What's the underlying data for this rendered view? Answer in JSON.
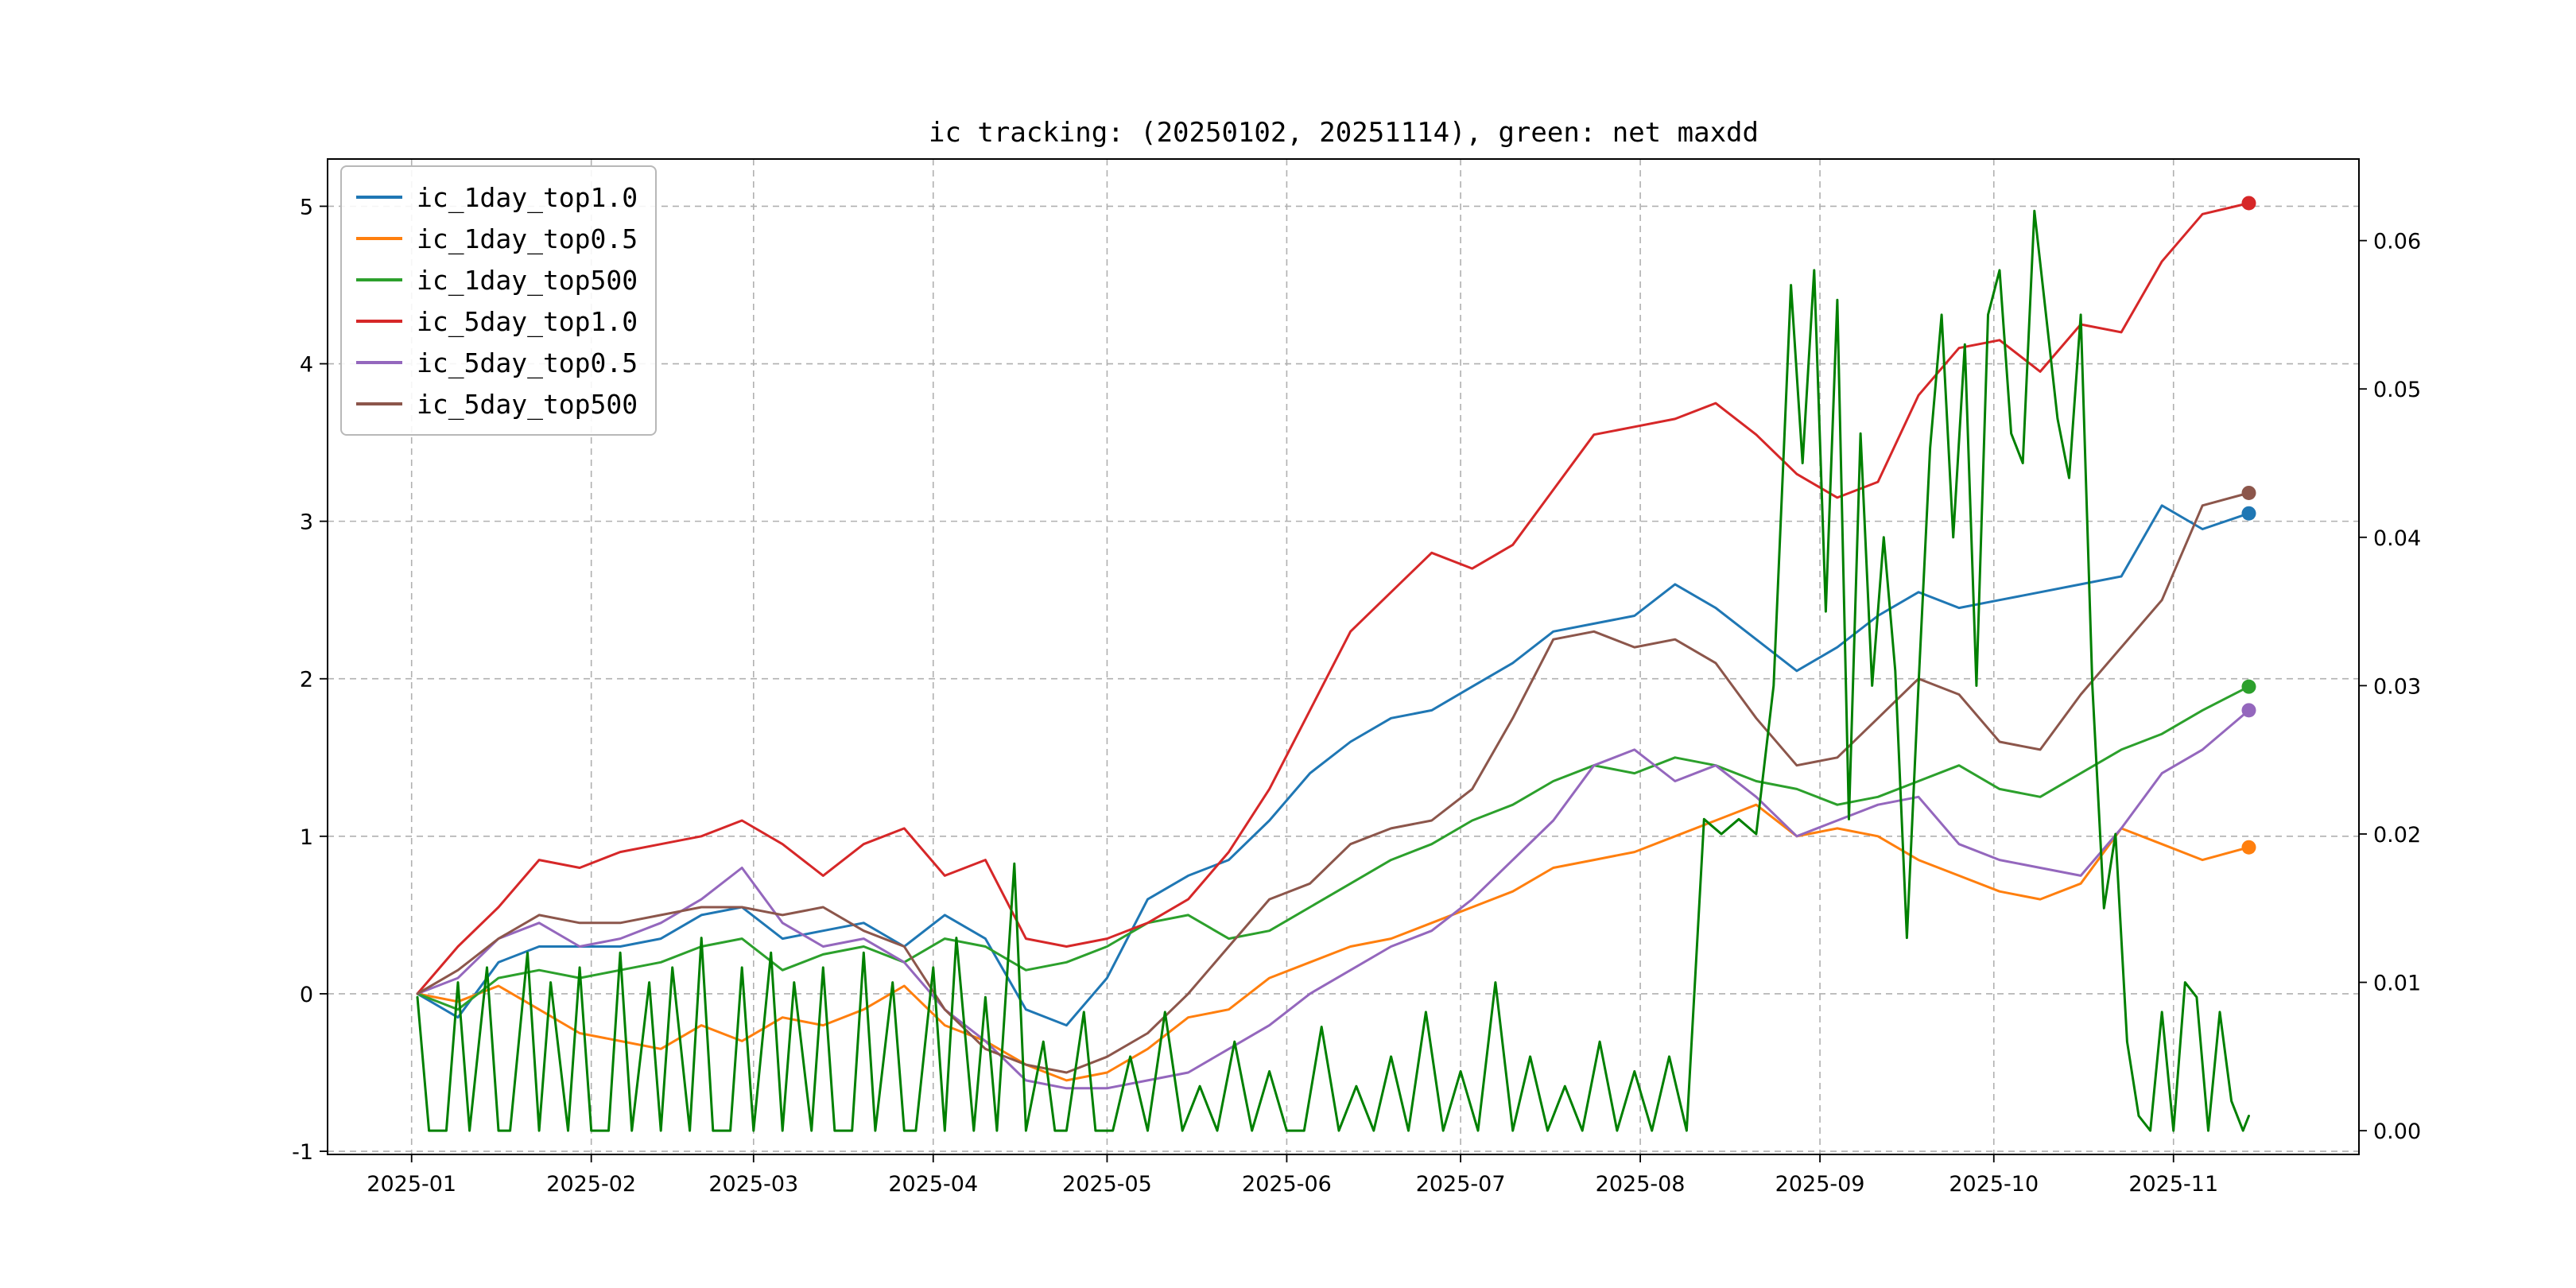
{
  "chart_data": {
    "type": "line",
    "title": "ic tracking: (20250102, 20251114), green: net maxdd",
    "date_range": [
      "20250102",
      "20251114"
    ],
    "x_ticks": [
      {
        "day": -1,
        "label": "2025-01"
      },
      {
        "day": 30,
        "label": "2025-02"
      },
      {
        "day": 58,
        "label": "2025-03"
      },
      {
        "day": 89,
        "label": "2025-04"
      },
      {
        "day": 119,
        "label": "2025-05"
      },
      {
        "day": 150,
        "label": "2025-06"
      },
      {
        "day": 180,
        "label": "2025-07"
      },
      {
        "day": 211,
        "label": "2025-08"
      },
      {
        "day": 242,
        "label": "2025-09"
      },
      {
        "day": 272,
        "label": "2025-10"
      },
      {
        "day": 303,
        "label": "2025-11"
      }
    ],
    "y_left": {
      "ticks": [
        -1,
        0,
        1,
        2,
        3,
        4,
        5
      ],
      "lim": [
        -1.02,
        5.3
      ]
    },
    "y_right": {
      "ticks": [
        {
          "v": 0.0,
          "label": "0.00"
        },
        {
          "v": 0.01,
          "label": "0.01"
        },
        {
          "v": 0.02,
          "label": "0.02"
        },
        {
          "v": 0.03,
          "label": "0.03"
        },
        {
          "v": 0.04,
          "label": "0.04"
        },
        {
          "v": 0.05,
          "label": "0.05"
        },
        {
          "v": 0.06,
          "label": "0.06"
        }
      ],
      "lim": [
        -0.0016,
        0.0655
      ]
    },
    "grid": {
      "on": true,
      "style": "dashed",
      "color": "#b0b0b0"
    },
    "legend_position": "upper-left",
    "week_days": [
      0,
      7,
      14,
      21,
      28,
      35,
      42,
      49,
      56,
      63,
      70,
      77,
      84,
      91,
      98,
      105,
      112,
      119,
      126,
      133,
      140,
      147,
      154,
      161,
      168,
      175,
      182,
      189,
      196,
      203,
      210,
      217,
      224,
      231,
      238,
      245,
      252,
      259,
      266,
      273,
      280,
      287,
      294,
      301,
      308,
      316
    ],
    "series": [
      {
        "name": "ic_1day_top1.0",
        "color": "#1f77b4",
        "axis": "left",
        "in_legend": true,
        "end_dot": true,
        "values": [
          0.0,
          -0.15,
          0.2,
          0.3,
          0.3,
          0.3,
          0.35,
          0.5,
          0.55,
          0.35,
          0.4,
          0.45,
          0.3,
          0.5,
          0.35,
          -0.1,
          -0.2,
          0.1,
          0.6,
          0.75,
          0.85,
          1.1,
          1.4,
          1.6,
          1.75,
          1.8,
          1.95,
          2.1,
          2.3,
          2.35,
          2.4,
          2.6,
          2.45,
          2.25,
          2.05,
          2.2,
          2.4,
          2.55,
          2.45,
          2.5,
          2.55,
          2.6,
          2.65,
          3.1,
          2.95,
          3.05
        ]
      },
      {
        "name": "ic_1day_top0.5",
        "color": "#ff7f0e",
        "axis": "left",
        "in_legend": true,
        "end_dot": true,
        "values": [
          0.0,
          -0.05,
          0.05,
          -0.1,
          -0.25,
          -0.3,
          -0.35,
          -0.2,
          -0.3,
          -0.15,
          -0.2,
          -0.1,
          0.05,
          -0.2,
          -0.3,
          -0.45,
          -0.55,
          -0.5,
          -0.35,
          -0.15,
          -0.1,
          0.1,
          0.2,
          0.3,
          0.35,
          0.45,
          0.55,
          0.65,
          0.8,
          0.85,
          0.9,
          1.0,
          1.1,
          1.2,
          1.0,
          1.05,
          1.0,
          0.85,
          0.75,
          0.65,
          0.6,
          0.7,
          1.05,
          0.95,
          0.85,
          0.93
        ]
      },
      {
        "name": "ic_1day_top500",
        "color": "#2ca02c",
        "axis": "left",
        "in_legend": true,
        "end_dot": true,
        "values": [
          0.0,
          -0.1,
          0.1,
          0.15,
          0.1,
          0.15,
          0.2,
          0.3,
          0.35,
          0.15,
          0.25,
          0.3,
          0.2,
          0.35,
          0.3,
          0.15,
          0.2,
          0.3,
          0.45,
          0.5,
          0.35,
          0.4,
          0.55,
          0.7,
          0.85,
          0.95,
          1.1,
          1.2,
          1.35,
          1.45,
          1.4,
          1.5,
          1.45,
          1.35,
          1.3,
          1.2,
          1.25,
          1.35,
          1.45,
          1.3,
          1.25,
          1.4,
          1.55,
          1.65,
          1.8,
          1.95
        ]
      },
      {
        "name": "ic_5day_top1.0",
        "color": "#d62728",
        "axis": "left",
        "in_legend": true,
        "end_dot": true,
        "values": [
          0.0,
          0.3,
          0.55,
          0.85,
          0.8,
          0.9,
          0.95,
          1.0,
          1.1,
          0.95,
          0.75,
          0.95,
          1.05,
          0.75,
          0.85,
          0.35,
          0.3,
          0.35,
          0.45,
          0.6,
          0.9,
          1.3,
          1.8,
          2.3,
          2.55,
          2.8,
          2.7,
          2.85,
          3.2,
          3.55,
          3.6,
          3.65,
          3.75,
          3.55,
          3.3,
          3.15,
          3.25,
          3.8,
          4.1,
          4.15,
          3.95,
          4.25,
          4.2,
          4.65,
          4.95,
          5.02
        ]
      },
      {
        "name": "ic_5day_top0.5",
        "color": "#9467bd",
        "axis": "left",
        "in_legend": true,
        "end_dot": true,
        "values": [
          0.0,
          0.1,
          0.35,
          0.45,
          0.3,
          0.35,
          0.45,
          0.6,
          0.8,
          0.45,
          0.3,
          0.35,
          0.2,
          -0.1,
          -0.3,
          -0.55,
          -0.6,
          -0.6,
          -0.55,
          -0.5,
          -0.35,
          -0.2,
          0.0,
          0.15,
          0.3,
          0.4,
          0.6,
          0.85,
          1.1,
          1.45,
          1.55,
          1.35,
          1.45,
          1.25,
          1.0,
          1.1,
          1.2,
          1.25,
          0.95,
          0.85,
          0.8,
          0.75,
          1.05,
          1.4,
          1.55,
          1.8
        ]
      },
      {
        "name": "ic_5day_top500",
        "color": "#8c564b",
        "axis": "left",
        "in_legend": true,
        "end_dot": true,
        "values": [
          0.0,
          0.15,
          0.35,
          0.5,
          0.45,
          0.45,
          0.5,
          0.55,
          0.55,
          0.5,
          0.55,
          0.4,
          0.3,
          -0.1,
          -0.35,
          -0.45,
          -0.5,
          -0.4,
          -0.25,
          0.0,
          0.3,
          0.6,
          0.7,
          0.95,
          1.05,
          1.1,
          1.3,
          1.75,
          2.25,
          2.3,
          2.2,
          2.25,
          2.1,
          1.75,
          1.45,
          1.5,
          1.75,
          2.0,
          1.9,
          1.6,
          1.55,
          1.9,
          2.2,
          2.5,
          3.1,
          3.18
        ]
      },
      {
        "name": "net_maxdd",
        "color": "#008000",
        "axis": "right",
        "in_legend": false,
        "end_dot": false,
        "points": [
          [
            0,
            0.009
          ],
          [
            2,
            0
          ],
          [
            5,
            0
          ],
          [
            7,
            0.01
          ],
          [
            9,
            0
          ],
          [
            12,
            0.011
          ],
          [
            14,
            0
          ],
          [
            16,
            0
          ],
          [
            19,
            0.012
          ],
          [
            21,
            0
          ],
          [
            23,
            0.01
          ],
          [
            26,
            0
          ],
          [
            28,
            0.011
          ],
          [
            30,
            0
          ],
          [
            33,
            0
          ],
          [
            35,
            0.012
          ],
          [
            37,
            0
          ],
          [
            40,
            0.01
          ],
          [
            42,
            0
          ],
          [
            44,
            0.011
          ],
          [
            47,
            0
          ],
          [
            49,
            0.013
          ],
          [
            51,
            0
          ],
          [
            54,
            0
          ],
          [
            56,
            0.011
          ],
          [
            58,
            0
          ],
          [
            61,
            0.012
          ],
          [
            63,
            0
          ],
          [
            65,
            0.01
          ],
          [
            68,
            0
          ],
          [
            70,
            0.011
          ],
          [
            72,
            0
          ],
          [
            75,
            0
          ],
          [
            77,
            0.012
          ],
          [
            79,
            0
          ],
          [
            82,
            0.01
          ],
          [
            84,
            0
          ],
          [
            86,
            0
          ],
          [
            89,
            0.011
          ],
          [
            91,
            0
          ],
          [
            93,
            0.013
          ],
          [
            96,
            0
          ],
          [
            98,
            0.009
          ],
          [
            100,
            0
          ],
          [
            103,
            0.018
          ],
          [
            105,
            0
          ],
          [
            108,
            0.006
          ],
          [
            110,
            0
          ],
          [
            112,
            0
          ],
          [
            115,
            0.008
          ],
          [
            117,
            0
          ],
          [
            120,
            0
          ],
          [
            123,
            0.005
          ],
          [
            126,
            0
          ],
          [
            129,
            0.008
          ],
          [
            132,
            0
          ],
          [
            135,
            0.003
          ],
          [
            138,
            0
          ],
          [
            141,
            0.006
          ],
          [
            144,
            0
          ],
          [
            147,
            0.004
          ],
          [
            150,
            0
          ],
          [
            153,
            0
          ],
          [
            156,
            0.007
          ],
          [
            159,
            0
          ],
          [
            162,
            0.003
          ],
          [
            165,
            0
          ],
          [
            168,
            0.005
          ],
          [
            171,
            0
          ],
          [
            174,
            0.008
          ],
          [
            177,
            0
          ],
          [
            180,
            0.004
          ],
          [
            183,
            0
          ],
          [
            186,
            0.01
          ],
          [
            189,
            0
          ],
          [
            192,
            0.005
          ],
          [
            195,
            0
          ],
          [
            198,
            0.003
          ],
          [
            201,
            0
          ],
          [
            204,
            0.006
          ],
          [
            207,
            0
          ],
          [
            210,
            0.004
          ],
          [
            213,
            0
          ],
          [
            216,
            0.005
          ],
          [
            219,
            0
          ],
          [
            222,
            0.021
          ],
          [
            225,
            0.02
          ],
          [
            228,
            0.021
          ],
          [
            231,
            0.02
          ],
          [
            234,
            0.03
          ],
          [
            237,
            0.057
          ],
          [
            239,
            0.045
          ],
          [
            241,
            0.058
          ],
          [
            243,
            0.035
          ],
          [
            245,
            0.056
          ],
          [
            247,
            0.021
          ],
          [
            249,
            0.047
          ],
          [
            251,
            0.03
          ],
          [
            253,
            0.04
          ],
          [
            255,
            0.031
          ],
          [
            257,
            0.013
          ],
          [
            259,
            0.03
          ],
          [
            261,
            0.046
          ],
          [
            263,
            0.055
          ],
          [
            265,
            0.04
          ],
          [
            267,
            0.053
          ],
          [
            269,
            0.03
          ],
          [
            271,
            0.055
          ],
          [
            273,
            0.058
          ],
          [
            275,
            0.047
          ],
          [
            277,
            0.045
          ],
          [
            279,
            0.062
          ],
          [
            281,
            0.055
          ],
          [
            283,
            0.048
          ],
          [
            285,
            0.044
          ],
          [
            287,
            0.055
          ],
          [
            289,
            0.03
          ],
          [
            291,
            0.015
          ],
          [
            293,
            0.02
          ],
          [
            295,
            0.006
          ],
          [
            297,
            0.001
          ],
          [
            299,
            0
          ],
          [
            301,
            0.008
          ],
          [
            303,
            0
          ],
          [
            305,
            0.01
          ],
          [
            307,
            0.009
          ],
          [
            309,
            0
          ],
          [
            311,
            0.008
          ],
          [
            313,
            0.002
          ],
          [
            315,
            0
          ],
          [
            316,
            0.001
          ]
        ]
      }
    ]
  }
}
